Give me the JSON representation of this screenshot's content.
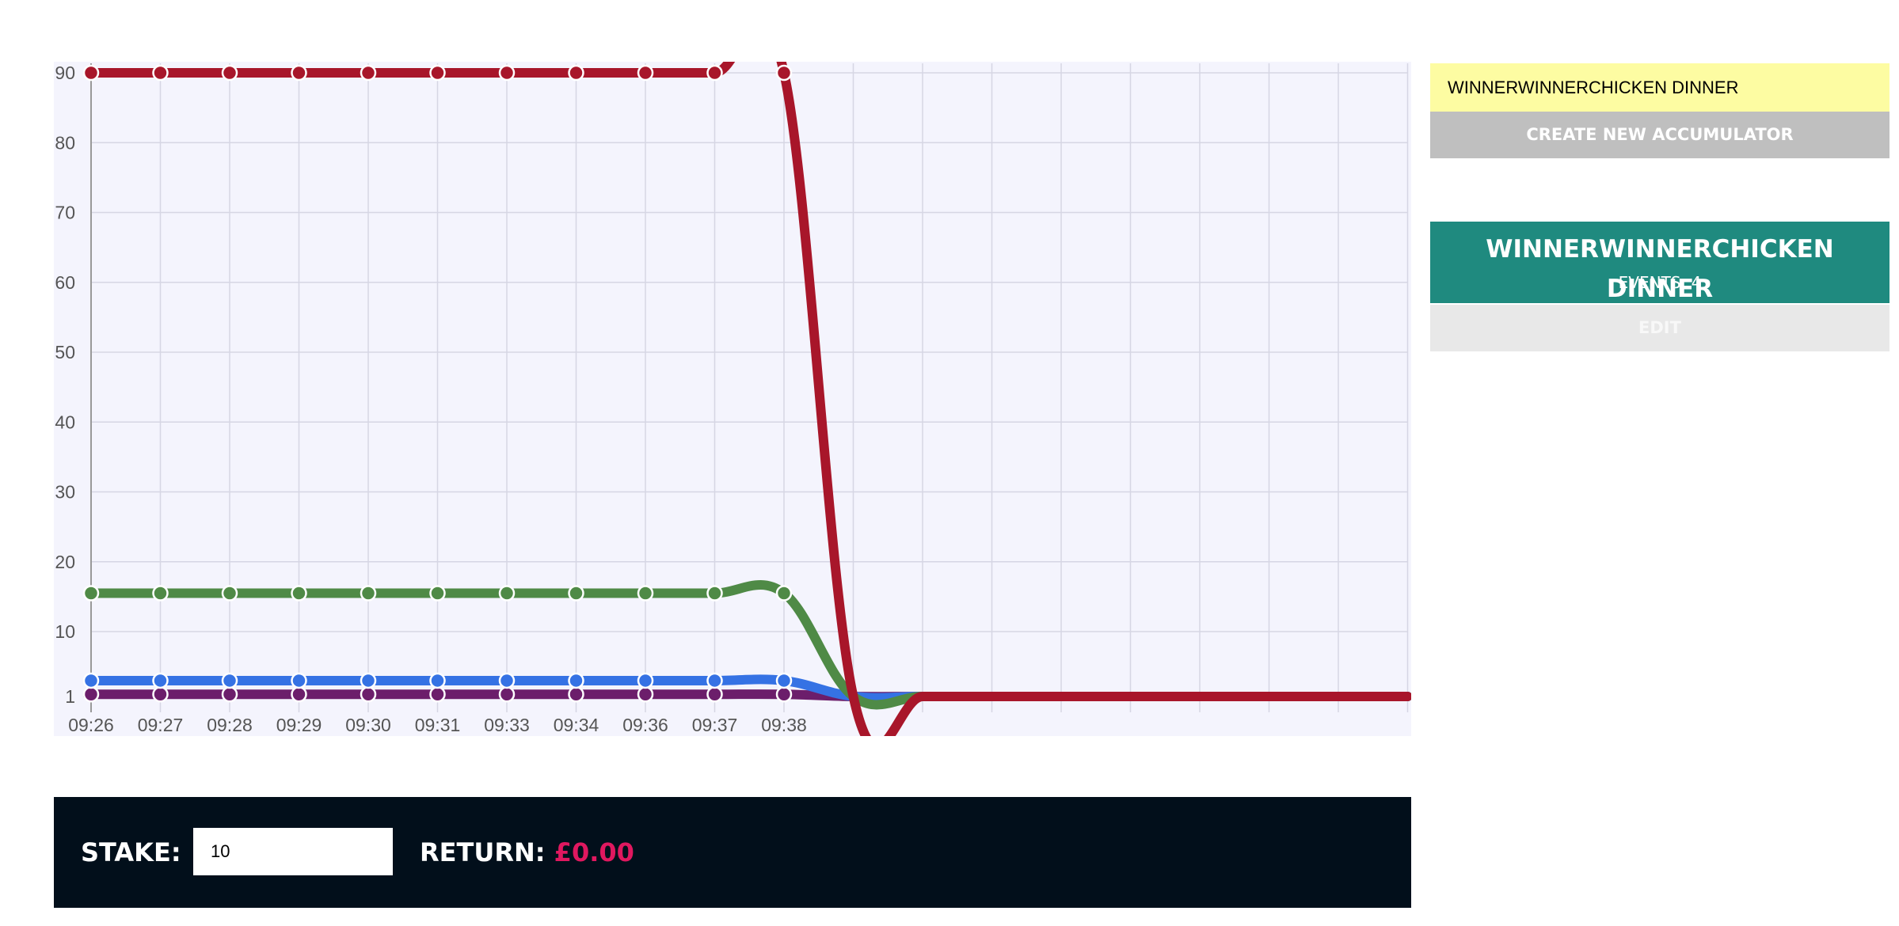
{
  "chart_data": {
    "type": "line",
    "x": [
      "09:26",
      "09:27",
      "09:28",
      "09:29",
      "09:30",
      "09:31",
      "09:33",
      "09:34",
      "09:36",
      "09:37",
      "09:38",
      "",
      "",
      "",
      "",
      "",
      "",
      "",
      "",
      ""
    ],
    "yticks": [
      90,
      80,
      70,
      60,
      50,
      40,
      30,
      20,
      10,
      1
    ],
    "ylim": [
      1,
      90
    ],
    "grid": true,
    "series": [
      {
        "color": "#a8162a",
        "values": [
          90,
          90,
          90,
          90,
          90,
          90,
          90,
          90,
          90,
          90,
          90,
          1,
          1,
          1,
          1,
          1,
          1,
          1,
          1,
          1
        ]
      },
      {
        "color": "#4f8a46",
        "values": [
          15.5,
          15.5,
          15.5,
          15.5,
          15.5,
          15.5,
          15.5,
          15.5,
          15.5,
          15.5,
          15.5,
          1,
          1,
          1,
          1,
          1,
          1,
          1,
          1,
          1
        ]
      },
      {
        "color": "#3572e4",
        "values": [
          3.2,
          3.2,
          3.2,
          3.2,
          3.2,
          3.2,
          3.2,
          3.2,
          3.2,
          3.2,
          3.2,
          1,
          1,
          1,
          1,
          1,
          1,
          1,
          1,
          1
        ]
      },
      {
        "color": "#6c1e6b",
        "values": [
          1.3,
          1.3,
          1.3,
          1.3,
          1.3,
          1.3,
          1.3,
          1.3,
          1.3,
          1.3,
          1.3,
          1,
          1,
          1,
          1,
          1,
          1,
          1,
          1,
          1
        ]
      }
    ]
  },
  "stake": {
    "label": "STAKE:",
    "value": "10"
  },
  "return": {
    "label": "RETURN:",
    "value": "£0.00"
  },
  "sidebar": {
    "name_input_value": "WINNERWINNERCHICKEN DINNER",
    "create_button": "CREATE NEW ACCUMULATOR",
    "accumulator": {
      "title": "WINNERWINNERCHICKEN DINNER",
      "events": "EVENTS: 4",
      "edit_button": "EDIT"
    }
  }
}
